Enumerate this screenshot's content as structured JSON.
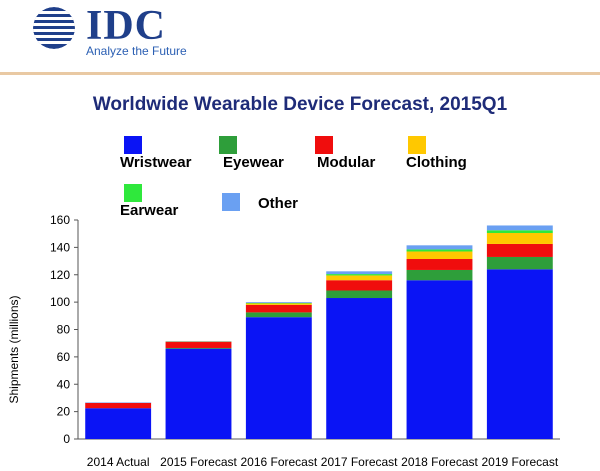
{
  "header": {
    "brand": "IDC",
    "tagline": "Analyze the Future",
    "logo_icon": "globe-icon"
  },
  "colors": {
    "Wristwear": "#0a14f5",
    "Eyewear": "#2e9e3a",
    "Modular": "#f00d0d",
    "Clothing": "#ffc800",
    "Earwear": "#2fe83c",
    "Other": "#6aa0f2",
    "brand_blue": "#1f3f8a",
    "title_blue": "#1e2b78",
    "rule": "#e9c9a3"
  },
  "chart_data": {
    "type": "bar",
    "stacked": true,
    "title": "Worldwide Wearable Device Forecast, 2015Q1",
    "ylabel": "Shipments (millions)",
    "xlabel": "",
    "ylim": [
      0,
      160
    ],
    "yticks": [
      0,
      20,
      40,
      60,
      80,
      100,
      120,
      140,
      160
    ],
    "grid": false,
    "legend_position": "top",
    "categories": [
      "2014 Actual",
      "2015 Forecast",
      "2016 Forecast",
      "2017 Forecast",
      "2018 Forecast",
      "2019 Forecast"
    ],
    "series": [
      {
        "name": "Wristwear",
        "values": [
          22.5,
          66,
          89,
          103,
          116,
          124
        ]
      },
      {
        "name": "Eyewear",
        "values": [
          0,
          0.5,
          3.5,
          5.5,
          7.5,
          9
        ]
      },
      {
        "name": "Modular",
        "values": [
          4,
          4.5,
          5.5,
          7.5,
          8,
          9.5
        ]
      },
      {
        "name": "Clothing",
        "values": [
          0,
          0.2,
          1.2,
          3.5,
          5.5,
          8
        ]
      },
      {
        "name": "Earwear",
        "values": [
          0,
          0,
          0.2,
          1,
          1.5,
          2
        ]
      },
      {
        "name": "Other",
        "values": [
          0.2,
          0.3,
          0.6,
          2,
          3,
          3.5
        ]
      }
    ]
  }
}
